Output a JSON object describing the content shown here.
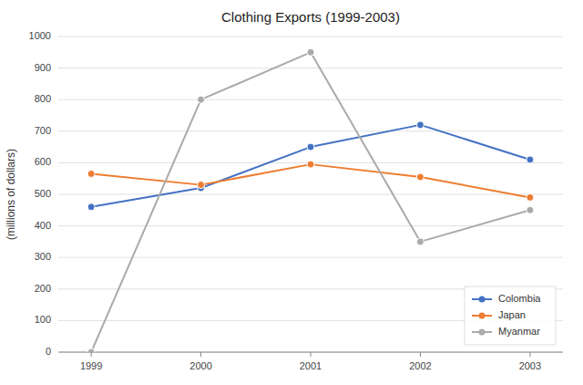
{
  "chart_data": {
    "type": "line",
    "title": "Clothing Exports (1999-2003)",
    "ylabel": "(millions of dollars)",
    "x": [
      1999,
      2000,
      2001,
      2002,
      2003
    ],
    "series": [
      {
        "name": "Colombia",
        "color": "#4472C4",
        "marker": "circle",
        "values": [
          460,
          520,
          650,
          720,
          610
        ]
      },
      {
        "name": "Japan",
        "color": "#ED7D31",
        "marker": "circle",
        "values": [
          565,
          530,
          595,
          555,
          490
        ]
      },
      {
        "name": "Myanmar",
        "color": "#AAAAAA",
        "marker": "circle",
        "values": [
          0,
          800,
          950,
          350,
          450
        ]
      }
    ],
    "xlim": [
      1998.7,
      2003.3
    ],
    "xticks": [
      1999,
      2000,
      2001,
      2002,
      2003
    ],
    "ylim": [
      0,
      1000
    ],
    "yticks": [
      0,
      100,
      200,
      300,
      400,
      500,
      600,
      700,
      800,
      900,
      1000
    ],
    "grid": true,
    "legend": "lower right"
  }
}
